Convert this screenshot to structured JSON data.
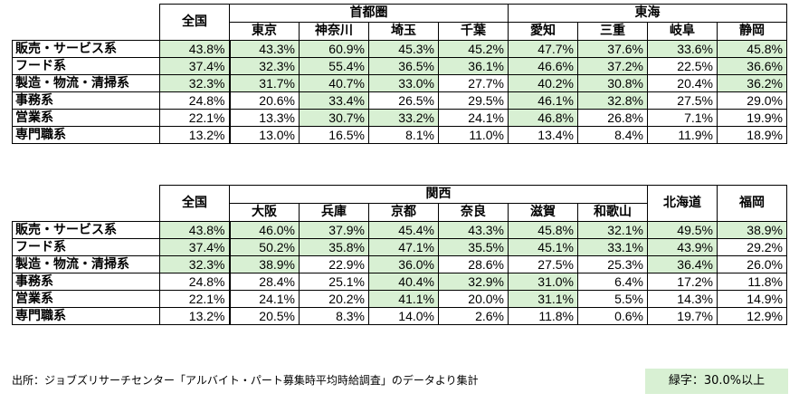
{
  "colors": {
    "highlight": "#d8f0d3",
    "border": "#000000"
  },
  "threshold": 30.0,
  "row_labels": [
    "販売・サービス系",
    "フード系",
    "製造・物流・清掃系",
    "事務系",
    "営業系",
    "専門職系"
  ],
  "top_table": {
    "national_label": "全国",
    "groups": [
      {
        "name": "首都圏",
        "regions": [
          "東京",
          "神奈川",
          "埼玉",
          "千葉"
        ]
      },
      {
        "name": "東海",
        "regions": [
          "愛知",
          "三重",
          "岐阜",
          "静岡"
        ]
      }
    ],
    "rows": [
      [
        "43.8%",
        "43.3%",
        "60.9%",
        "45.3%",
        "45.2%",
        "47.7%",
        "37.6%",
        "33.6%",
        "45.8%"
      ],
      [
        "37.4%",
        "32.3%",
        "55.4%",
        "36.5%",
        "36.1%",
        "46.6%",
        "37.2%",
        "22.5%",
        "36.6%"
      ],
      [
        "32.3%",
        "31.7%",
        "40.7%",
        "33.0%",
        "27.7%",
        "40.2%",
        "30.8%",
        "20.4%",
        "36.2%"
      ],
      [
        "24.8%",
        "20.6%",
        "33.4%",
        "26.5%",
        "29.5%",
        "46.1%",
        "32.8%",
        "27.5%",
        "29.0%"
      ],
      [
        "22.1%",
        "13.3%",
        "30.7%",
        "33.2%",
        "24.1%",
        "46.8%",
        "26.8%",
        "7.1%",
        "19.9%"
      ],
      [
        "13.2%",
        "13.0%",
        "16.5%",
        "8.1%",
        "11.0%",
        "13.4%",
        "8.4%",
        "11.9%",
        "18.9%"
      ]
    ]
  },
  "bottom_table": {
    "national_label": "全国",
    "groups": [
      {
        "name": "関西",
        "regions": [
          "大阪",
          "兵庫",
          "京都",
          "奈良",
          "滋賀",
          "和歌山"
        ]
      }
    ],
    "singles": [
      "北海道",
      "福岡"
    ],
    "rows": [
      [
        "43.8%",
        "46.0%",
        "37.9%",
        "45.4%",
        "43.3%",
        "45.8%",
        "32.1%",
        "49.5%",
        "38.9%"
      ],
      [
        "37.4%",
        "50.2%",
        "35.8%",
        "47.1%",
        "35.5%",
        "45.1%",
        "33.1%",
        "43.9%",
        "29.2%"
      ],
      [
        "32.3%",
        "38.9%",
        "22.9%",
        "36.0%",
        "28.6%",
        "27.5%",
        "25.3%",
        "36.4%",
        "26.0%"
      ],
      [
        "24.8%",
        "28.4%",
        "25.1%",
        "40.4%",
        "32.9%",
        "31.0%",
        "6.4%",
        "17.2%",
        "11.8%"
      ],
      [
        "22.1%",
        "24.1%",
        "20.2%",
        "41.1%",
        "20.0%",
        "31.1%",
        "5.5%",
        "14.3%",
        "14.9%"
      ],
      [
        "13.2%",
        "20.5%",
        "8.3%",
        "14.0%",
        "2.6%",
        "11.8%",
        "0.6%",
        "19.7%",
        "12.9%"
      ]
    ]
  },
  "source_note": "出所：ジョブズリサーチセンター「アルバイト・パート募集時平均時給調査」のデータより集計",
  "legend": "緑字：30.0%以上"
}
